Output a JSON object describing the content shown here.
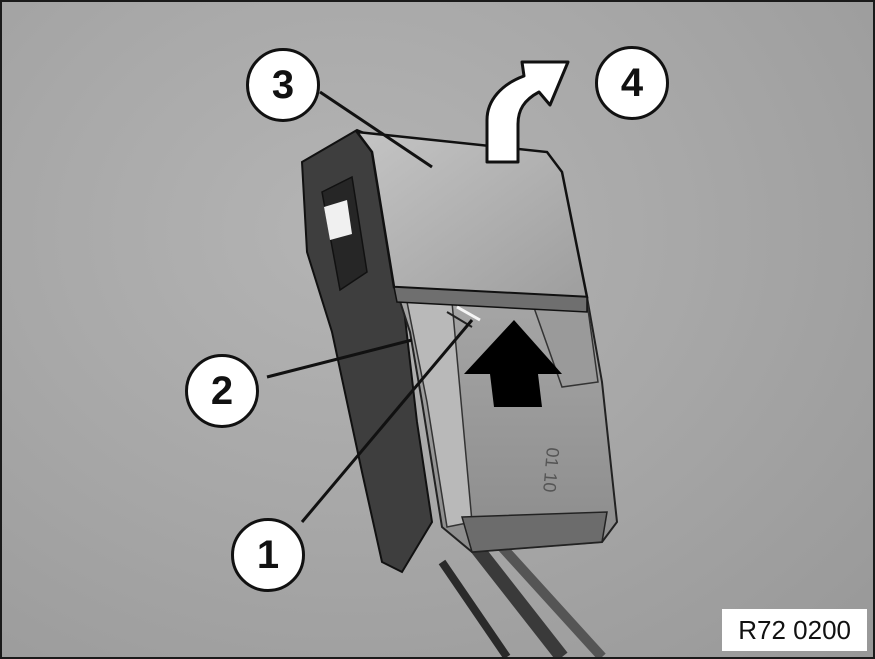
{
  "callouts": {
    "c1": "1",
    "c2": "2",
    "c3": "3",
    "c4": "4"
  },
  "reference_code": "R72 0200",
  "part_marking": "01 10",
  "colors": {
    "background": "#a8a8a8",
    "callout_fill": "#ffffff",
    "outline": "#111111",
    "arrow_push": "#000000",
    "arrow_lift": "#ffffff"
  },
  "icons": [
    "push-arrow-icon",
    "lift-arrow-icon"
  ]
}
